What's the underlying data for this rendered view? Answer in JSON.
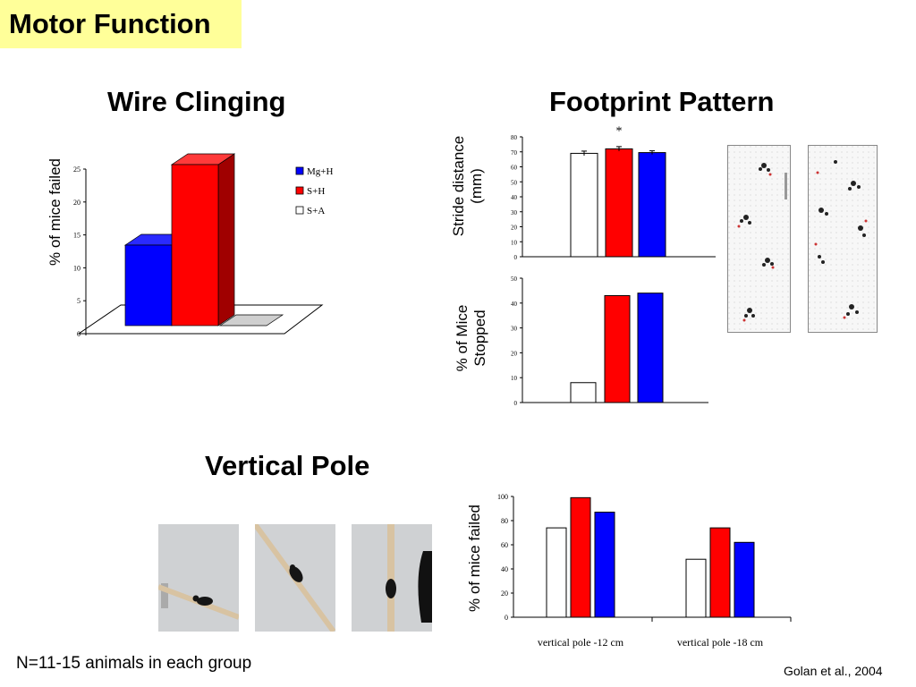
{
  "slide_title": "Motor Function",
  "panels": {
    "wire": {
      "title": "Wire Clinging",
      "ylabel": "% of mice failed"
    },
    "footprint": {
      "title": "Footprint Pattern",
      "ylabel_top": "Stride distance (mm)",
      "ylabel_top_line1": "Stride distance",
      "ylabel_top_line2": "(mm)",
      "ylabel_bottom_line1": "% of Mice",
      "ylabel_bottom_line2": "Stopped",
      "significance": "*"
    },
    "pole": {
      "title": "Vertical Pole",
      "ylabel": "% of mice  failed"
    }
  },
  "footer_note": "N=11-15 animals in each group",
  "citation": "Golan et al., 2004",
  "colors": {
    "mgh": "#ffffff",
    "sh": "#ff0000",
    "sa": "#0000ff",
    "title_bg": "#ffff99"
  },
  "chart_data": [
    {
      "id": "wire",
      "type": "bar",
      "style": "3d",
      "categories": [
        "Mg+H",
        "S+H",
        "S+A"
      ],
      "values": [
        12.5,
        25,
        0
      ],
      "series_colors": [
        "#0000ff",
        "#ff0000",
        "#ffffff"
      ],
      "legend": [
        "Mg+H",
        "S+H",
        "S+A"
      ],
      "legend_colors": [
        "#0000ff",
        "#ff0000",
        "#ffffff"
      ],
      "ylim": [
        0,
        25
      ],
      "yticks": [
        0,
        5,
        10,
        15,
        20,
        25
      ],
      "ylabel": "% of mice failed"
    },
    {
      "id": "stride",
      "type": "bar",
      "values": [
        69,
        72,
        69.5
      ],
      "errors": [
        1.5,
        1.5,
        1.2
      ],
      "series_colors": [
        "#ffffff",
        "#ff0000",
        "#0000ff"
      ],
      "ylim": [
        0,
        80
      ],
      "yticks": [
        0,
        10,
        20,
        30,
        40,
        50,
        60,
        70,
        80
      ],
      "ylabel": "Stride distance (mm)"
    },
    {
      "id": "stopped",
      "type": "bar",
      "values": [
        8,
        43,
        44
      ],
      "series_colors": [
        "#ffffff",
        "#ff0000",
        "#0000ff"
      ],
      "ylim": [
        0,
        50
      ],
      "yticks": [
        0,
        10,
        20,
        30,
        40,
        50
      ],
      "ylabel": "% of Mice Stopped"
    },
    {
      "id": "pole",
      "type": "bar",
      "categories": [
        "vertical pole -12 cm",
        "vertical pole -18 cm"
      ],
      "series": [
        {
          "color": "#ffffff",
          "values": [
            74,
            48
          ]
        },
        {
          "color": "#ff0000",
          "values": [
            99,
            74
          ]
        },
        {
          "color": "#0000ff",
          "values": [
            87,
            62
          ]
        }
      ],
      "ylim": [
        0,
        100
      ],
      "yticks": [
        0,
        20,
        40,
        60,
        80,
        100
      ],
      "ylabel": "% of mice  failed"
    }
  ]
}
